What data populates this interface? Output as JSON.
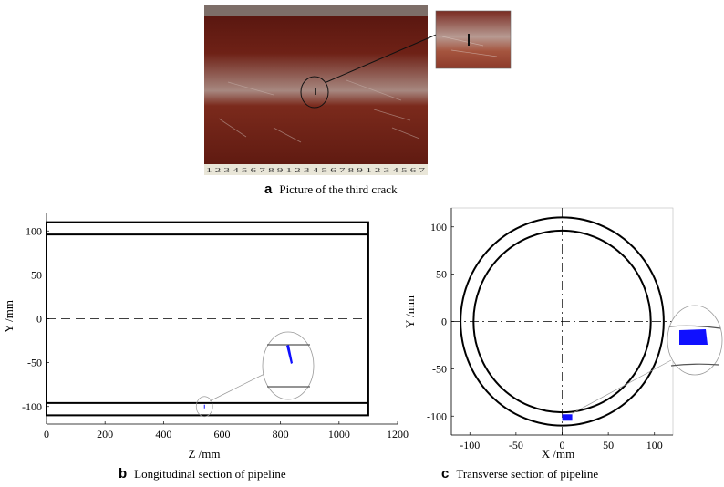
{
  "panel_a": {
    "letter": "a",
    "caption": "Picture of the third crack",
    "ruler_text": "1 2 3 4 5 6 7 8 9 1 2 3 4 5 6 7 8 9 1 2 3 4 5 6 7",
    "colors": {
      "pipe": "#7a1f14",
      "highlight": "#b9a6a0",
      "crack": "#111111"
    }
  },
  "panel_b": {
    "letter": "b",
    "caption": "Longitudinal section of pipeline",
    "colors": {
      "crack": "#1010ff",
      "outline": "#000000"
    },
    "chart_data": {
      "type": "diagram",
      "xlabel": "Z /mm",
      "ylabel": "Y /mm",
      "xlim": [
        0,
        1200
      ],
      "ylim": [
        -120,
        120
      ],
      "xticks": [
        0,
        200,
        400,
        600,
        800,
        1000,
        1200
      ],
      "yticks": [
        100,
        50,
        0,
        -50,
        -100
      ],
      "pipe_length": 1100,
      "outer_radius": 110,
      "inner_radius": 96,
      "centerline_y": 0,
      "crack_location_z": 540,
      "zoom_inset": true
    }
  },
  "panel_c": {
    "letter": "c",
    "caption": "Transverse section of pipeline",
    "colors": {
      "crack": "#1010ff",
      "outline": "#000000"
    },
    "chart_data": {
      "type": "diagram",
      "xlabel": "X /mm",
      "ylabel": "Y /mm",
      "xlim": [
        -120,
        120
      ],
      "ylim": [
        -120,
        120
      ],
      "xticks": [
        -100,
        -50,
        0,
        50,
        100
      ],
      "yticks": [
        100,
        50,
        0,
        -50,
        -100
      ],
      "outer_radius": 110,
      "inner_radius": 96,
      "crack_location": {
        "x": 6,
        "y": -101
      },
      "zoom_inset": true
    }
  }
}
